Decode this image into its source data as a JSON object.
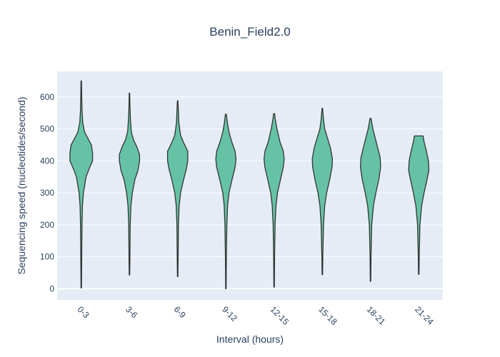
{
  "chart_data": {
    "type": "violin",
    "title": "Benin_Field2.0",
    "xlabel": "Interval (hours)",
    "ylabel": "Sequencing speed (nucleotides/second)",
    "ylim": [
      -35,
      680
    ],
    "yticks": [
      0,
      100,
      200,
      300,
      400,
      500,
      600
    ],
    "categories": [
      "0-3",
      "3-6",
      "6-9",
      "9-12",
      "12-15",
      "15-18",
      "18-21",
      "21-24"
    ],
    "violins": [
      {
        "min": 2,
        "max": 650,
        "median": 425,
        "q1": 385,
        "q3": 450,
        "max_halfwidth": 0.47,
        "profile": [
          [
            2,
            0.01
          ],
          [
            100,
            0.02
          ],
          [
            200,
            0.03
          ],
          [
            260,
            0.05
          ],
          [
            300,
            0.09
          ],
          [
            350,
            0.2
          ],
          [
            380,
            0.35
          ],
          [
            400,
            0.47
          ],
          [
            425,
            0.47
          ],
          [
            450,
            0.42
          ],
          [
            470,
            0.28
          ],
          [
            490,
            0.14
          ],
          [
            520,
            0.06
          ],
          [
            560,
            0.03
          ],
          [
            600,
            0.02
          ],
          [
            650,
            0.01
          ]
        ]
      },
      {
        "min": 43,
        "max": 612,
        "median": 410,
        "q1": 360,
        "q3": 440,
        "max_halfwidth": 0.42,
        "profile": [
          [
            43,
            0.01
          ],
          [
            100,
            0.02
          ],
          [
            200,
            0.03
          ],
          [
            260,
            0.06
          ],
          [
            300,
            0.12
          ],
          [
            340,
            0.22
          ],
          [
            370,
            0.35
          ],
          [
            400,
            0.42
          ],
          [
            420,
            0.42
          ],
          [
            445,
            0.3
          ],
          [
            465,
            0.17
          ],
          [
            490,
            0.08
          ],
          [
            530,
            0.04
          ],
          [
            570,
            0.02
          ],
          [
            612,
            0.01
          ]
        ]
      },
      {
        "min": 38,
        "max": 588,
        "median": 410,
        "q1": 360,
        "q3": 440,
        "max_halfwidth": 0.42,
        "profile": [
          [
            38,
            0.01
          ],
          [
            100,
            0.02
          ],
          [
            200,
            0.03
          ],
          [
            260,
            0.06
          ],
          [
            300,
            0.12
          ],
          [
            340,
            0.24
          ],
          [
            375,
            0.36
          ],
          [
            400,
            0.42
          ],
          [
            430,
            0.42
          ],
          [
            455,
            0.26
          ],
          [
            480,
            0.12
          ],
          [
            520,
            0.05
          ],
          [
            555,
            0.03
          ],
          [
            588,
            0.01
          ]
        ]
      },
      {
        "min": 0,
        "max": 546,
        "median": 405,
        "q1": 355,
        "q3": 440,
        "max_halfwidth": 0.42,
        "profile": [
          [
            0,
            0.01
          ],
          [
            100,
            0.02
          ],
          [
            200,
            0.04
          ],
          [
            260,
            0.07
          ],
          [
            300,
            0.13
          ],
          [
            340,
            0.25
          ],
          [
            380,
            0.38
          ],
          [
            405,
            0.42
          ],
          [
            430,
            0.38
          ],
          [
            460,
            0.24
          ],
          [
            490,
            0.13
          ],
          [
            520,
            0.06
          ],
          [
            546,
            0.02
          ]
        ]
      },
      {
        "min": 5,
        "max": 548,
        "median": 405,
        "q1": 350,
        "q3": 440,
        "max_halfwidth": 0.42,
        "profile": [
          [
            5,
            0.01
          ],
          [
            100,
            0.02
          ],
          [
            200,
            0.04
          ],
          [
            260,
            0.08
          ],
          [
            300,
            0.14
          ],
          [
            340,
            0.26
          ],
          [
            380,
            0.38
          ],
          [
            405,
            0.42
          ],
          [
            430,
            0.38
          ],
          [
            460,
            0.24
          ],
          [
            500,
            0.12
          ],
          [
            530,
            0.05
          ],
          [
            548,
            0.02
          ]
        ]
      },
      {
        "min": 44,
        "max": 565,
        "median": 400,
        "q1": 345,
        "q3": 440,
        "max_halfwidth": 0.42,
        "profile": [
          [
            44,
            0.01
          ],
          [
            100,
            0.02
          ],
          [
            200,
            0.05
          ],
          [
            260,
            0.1
          ],
          [
            300,
            0.18
          ],
          [
            340,
            0.3
          ],
          [
            380,
            0.4
          ],
          [
            405,
            0.42
          ],
          [
            440,
            0.34
          ],
          [
            470,
            0.22
          ],
          [
            500,
            0.1
          ],
          [
            530,
            0.05
          ],
          [
            565,
            0.01
          ]
        ]
      },
      {
        "min": 23,
        "max": 533,
        "median": 385,
        "q1": 330,
        "q3": 430,
        "max_halfwidth": 0.42,
        "profile": [
          [
            23,
            0.01
          ],
          [
            100,
            0.02
          ],
          [
            200,
            0.05
          ],
          [
            260,
            0.12
          ],
          [
            300,
            0.22
          ],
          [
            340,
            0.34
          ],
          [
            380,
            0.42
          ],
          [
            410,
            0.4
          ],
          [
            440,
            0.3
          ],
          [
            470,
            0.2
          ],
          [
            500,
            0.1
          ],
          [
            533,
            0.02
          ]
        ]
      },
      {
        "min": 45,
        "max": 478,
        "median": 380,
        "q1": 330,
        "q3": 425,
        "max_halfwidth": 0.42,
        "profile": [
          [
            45,
            0.01
          ],
          [
            100,
            0.02
          ],
          [
            200,
            0.05
          ],
          [
            260,
            0.12
          ],
          [
            300,
            0.22
          ],
          [
            340,
            0.34
          ],
          [
            370,
            0.42
          ],
          [
            400,
            0.4
          ],
          [
            430,
            0.32
          ],
          [
            460,
            0.22
          ],
          [
            478,
            0.18
          ]
        ]
      }
    ],
    "colors": {
      "fill": "#66c2a5",
      "stroke": "#333333",
      "plot_bg": "#e5ecf6",
      "grid": "#ffffff",
      "text": "#2a3f5f"
    }
  }
}
